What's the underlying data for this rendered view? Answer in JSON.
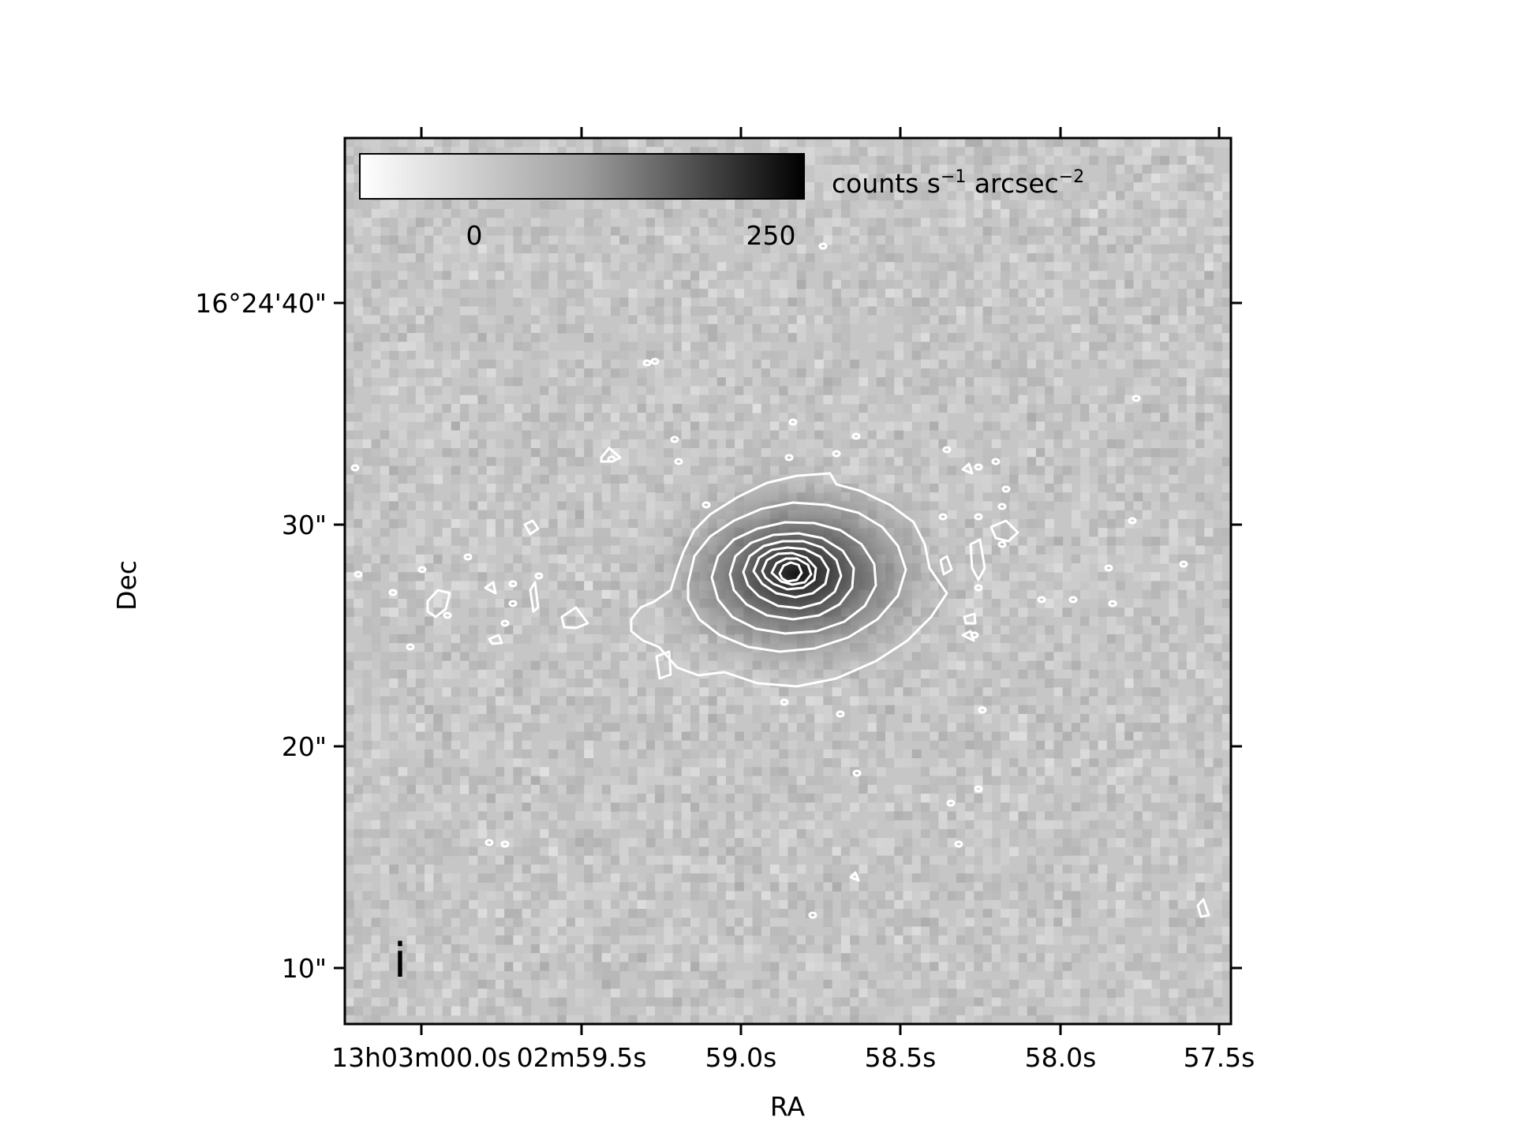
{
  "figure": {
    "band_label": "i",
    "xlabel": "RA",
    "ylabel": "Dec",
    "ra_ticks": [
      "13h03m00.0s",
      "02m59.5s",
      "59.0s",
      "58.5s",
      "58.0s",
      "57.5s"
    ],
    "dec_ticks": [
      "16°24'40\"",
      "30\"",
      "20\"",
      "10\""
    ],
    "colorbar": {
      "unit_text": "counts s",
      "unit_exp1": "−1",
      "unit_mid": " arcsec",
      "unit_exp2": "−2",
      "tick_labels": [
        "0",
        "250"
      ],
      "colormap": "gray_r"
    },
    "contour_color": "#ffffff",
    "background_gray": "#c6c6c6"
  }
}
